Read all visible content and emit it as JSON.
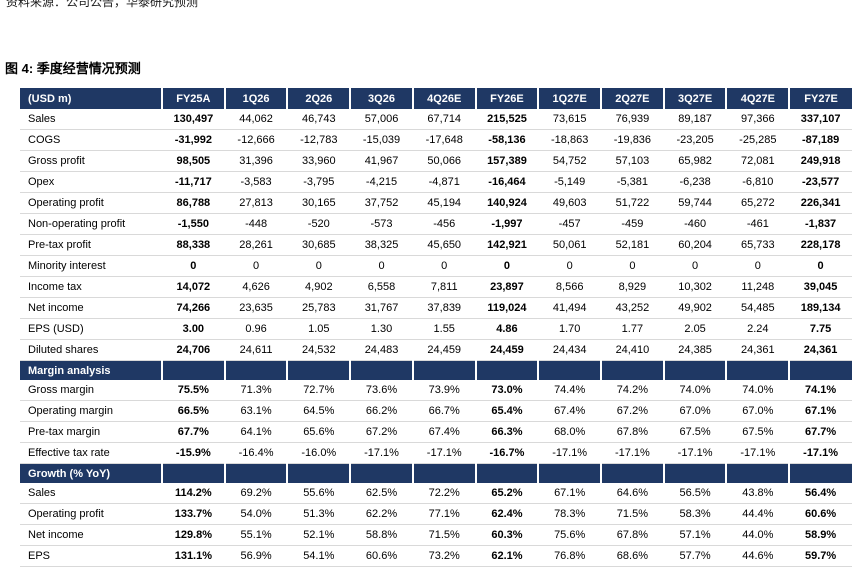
{
  "colors": {
    "header_bg": "#1f3864",
    "row_line": "#d9d9d9",
    "header_text": "#ffffff",
    "body_text": "#000000"
  },
  "page": {
    "clipped_top_text": "资料来源：公司公告，华泰研究预测",
    "figure_title": "图 4: 季度经营情况预测"
  },
  "table": {
    "columns": [
      "(USD m)",
      "FY25A",
      "1Q26",
      "2Q26",
      "3Q26",
      "4Q26E",
      "FY26E",
      "1Q27E",
      "2Q27E",
      "3Q27E",
      "4Q27E",
      "FY27E"
    ],
    "bold_column_indices": [
      1,
      6,
      11
    ],
    "sections": [
      {
        "header": "",
        "rows": [
          [
            "Sales",
            "130,497",
            "44,062",
            "46,743",
            "57,006",
            "67,714",
            "215,525",
            "73,615",
            "76,939",
            "89,187",
            "97,366",
            "337,107"
          ],
          [
            "COGS",
            "-31,992",
            "-12,666",
            "-12,783",
            "-15,039",
            "-17,648",
            "-58,136",
            "-18,863",
            "-19,836",
            "-23,205",
            "-25,285",
            "-87,189"
          ],
          [
            "Gross profit",
            "98,505",
            "31,396",
            "33,960",
            "41,967",
            "50,066",
            "157,389",
            "54,752",
            "57,103",
            "65,982",
            "72,081",
            "249,918"
          ],
          [
            "Opex",
            "-11,717",
            "-3,583",
            "-3,795",
            "-4,215",
            "-4,871",
            "-16,464",
            "-5,149",
            "-5,381",
            "-6,238",
            "-6,810",
            "-23,577"
          ],
          [
            "Operating profit",
            "86,788",
            "27,813",
            "30,165",
            "37,752",
            "45,194",
            "140,924",
            "49,603",
            "51,722",
            "59,744",
            "65,272",
            "226,341"
          ],
          [
            "Non-operating profit",
            "-1,550",
            "-448",
            "-520",
            "-573",
            "-456",
            "-1,997",
            "-457",
            "-459",
            "-460",
            "-461",
            "-1,837"
          ],
          [
            "Pre-tax profit",
            "88,338",
            "28,261",
            "30,685",
            "38,325",
            "45,650",
            "142,921",
            "50,061",
            "52,181",
            "60,204",
            "65,733",
            "228,178"
          ],
          [
            "Minority interest",
            "0",
            "0",
            "0",
            "0",
            "0",
            "0",
            "0",
            "0",
            "0",
            "0",
            "0"
          ],
          [
            "Income tax",
            "14,072",
            "4,626",
            "4,902",
            "6,558",
            "7,811",
            "23,897",
            "8,566",
            "8,929",
            "10,302",
            "11,248",
            "39,045"
          ],
          [
            "Net income",
            "74,266",
            "23,635",
            "25,783",
            "31,767",
            "37,839",
            "119,024",
            "41,494",
            "43,252",
            "49,902",
            "54,485",
            "189,134"
          ],
          [
            "EPS (USD)",
            "3.00",
            "0.96",
            "1.05",
            "1.30",
            "1.55",
            "4.86",
            "1.70",
            "1.77",
            "2.05",
            "2.24",
            "7.75"
          ],
          [
            "Diluted shares",
            "24,706",
            "24,611",
            "24,532",
            "24,483",
            "24,459",
            "24,459",
            "24,434",
            "24,410",
            "24,385",
            "24,361",
            "24,361"
          ]
        ]
      },
      {
        "header": "Margin analysis",
        "rows": [
          [
            "Gross margin",
            "75.5%",
            "71.3%",
            "72.7%",
            "73.6%",
            "73.9%",
            "73.0%",
            "74.4%",
            "74.2%",
            "74.0%",
            "74.0%",
            "74.1%"
          ],
          [
            "Operating margin",
            "66.5%",
            "63.1%",
            "64.5%",
            "66.2%",
            "66.7%",
            "65.4%",
            "67.4%",
            "67.2%",
            "67.0%",
            "67.0%",
            "67.1%"
          ],
          [
            "Pre-tax margin",
            "67.7%",
            "64.1%",
            "65.6%",
            "67.2%",
            "67.4%",
            "66.3%",
            "68.0%",
            "67.8%",
            "67.5%",
            "67.5%",
            "67.7%"
          ],
          [
            "Effective tax rate",
            "-15.9%",
            "-16.4%",
            "-16.0%",
            "-17.1%",
            "-17.1%",
            "-16.7%",
            "-17.1%",
            "-17.1%",
            "-17.1%",
            "-17.1%",
            "-17.1%"
          ]
        ]
      },
      {
        "header": "Growth (% YoY)",
        "rows": [
          [
            "Sales",
            "114.2%",
            "69.2%",
            "55.6%",
            "62.5%",
            "72.2%",
            "65.2%",
            "67.1%",
            "64.6%",
            "56.5%",
            "43.8%",
            "56.4%"
          ],
          [
            "Operating profit",
            "133.7%",
            "54.0%",
            "51.3%",
            "62.2%",
            "77.1%",
            "62.4%",
            "78.3%",
            "71.5%",
            "58.3%",
            "44.4%",
            "60.6%"
          ],
          [
            "Net income",
            "129.8%",
            "55.1%",
            "52.1%",
            "58.8%",
            "71.5%",
            "60.3%",
            "75.6%",
            "67.8%",
            "57.1%",
            "44.0%",
            "58.9%"
          ],
          [
            "EPS",
            "131.1%",
            "56.9%",
            "54.1%",
            "60.6%",
            "73.2%",
            "62.1%",
            "76.8%",
            "68.6%",
            "57.7%",
            "44.6%",
            "59.7%"
          ]
        ]
      }
    ]
  }
}
